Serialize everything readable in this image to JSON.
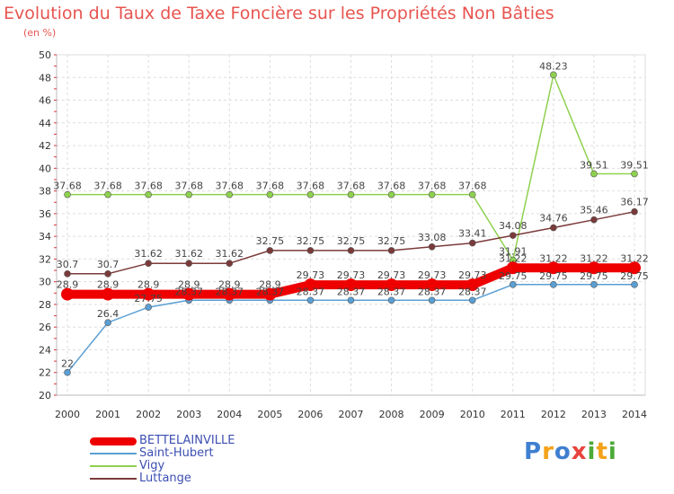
{
  "title": "Evolution du Taux de Taxe Foncière sur les Propriétés Non Bâties",
  "subtitle": "(en %)",
  "logo": {
    "letters": [
      "P",
      "r",
      "o",
      "x",
      "i",
      "t",
      "i"
    ],
    "colors": [
      "#3f7fd1",
      "#f4a21b",
      "#3f7fd1",
      "#e8433c",
      "#4caa38",
      "#f4a21b",
      "#4caa38"
    ]
  },
  "chart_data": {
    "type": "line",
    "title": "Evolution du Taux de Taxe Foncière sur les Propriétés Non Bâties",
    "ylabel": "(en %)",
    "x": [
      "2000",
      "2001",
      "2002",
      "2003",
      "2004",
      "2005",
      "2006",
      "2007",
      "2008",
      "2009",
      "2010",
      "2011",
      "2012",
      "2013",
      "2014"
    ],
    "ylim": [
      20,
      50
    ],
    "yticks": [
      "20",
      "22",
      "24",
      "26",
      "28",
      "30",
      "32",
      "34",
      "36",
      "38",
      "40",
      "42",
      "44",
      "46",
      "48",
      "50"
    ],
    "grid": true,
    "legend_position": "bottom-left",
    "series": [
      {
        "name": "BETTELAINVILLE",
        "color": "#ee0000",
        "values": [
          28.9,
          28.9,
          28.9,
          28.9,
          28.9,
          28.9,
          29.73,
          29.73,
          29.73,
          29.73,
          29.73,
          31.22,
          31.22,
          31.22,
          31.22
        ],
        "labels": [
          "28.9",
          "28.9",
          "28.9",
          "28.9",
          "28.9",
          "28.9",
          "29.73",
          "29.73",
          "29.73",
          "29.73",
          "29.73",
          "31.22",
          "31.22",
          "31.22",
          "31.22"
        ]
      },
      {
        "name": "Saint-Hubert",
        "color": "#5a9fd4",
        "values": [
          22,
          26.4,
          27.75,
          28.37,
          28.37,
          28.37,
          28.37,
          28.37,
          28.37,
          28.37,
          28.37,
          29.75,
          29.75,
          29.75,
          29.75
        ],
        "labels": [
          "22",
          "26.4",
          "27.75",
          "28.37",
          "28.37",
          "28.37",
          "28.37",
          "28.37",
          "28.37",
          "28.37",
          "28.37",
          "29.75",
          "29.75",
          "29.75",
          "29.75"
        ]
      },
      {
        "name": "Vigy",
        "color": "#8fd14f",
        "values": [
          37.68,
          37.68,
          37.68,
          37.68,
          37.68,
          37.68,
          37.68,
          37.68,
          37.68,
          37.68,
          37.68,
          31.91,
          48.23,
          39.51,
          39.51
        ],
        "labels": [
          "37.68",
          "37.68",
          "37.68",
          "37.68",
          "37.68",
          "37.68",
          "37.68",
          "37.68",
          "37.68",
          "37.68",
          "37.68",
          "31.91",
          "48.23",
          "39.51",
          "39.51"
        ]
      },
      {
        "name": "Luttange",
        "color": "#7b3a3a",
        "values": [
          30.7,
          30.7,
          31.62,
          31.62,
          31.62,
          32.75,
          32.75,
          32.75,
          32.75,
          33.08,
          33.41,
          34.08,
          34.76,
          35.46,
          36.17
        ],
        "labels": [
          "30.7",
          "30.7",
          "31.62",
          "31.62",
          "31.62",
          "32.75",
          "32.75",
          "32.75",
          "32.75",
          "33.08",
          "33.41",
          "34.08",
          "34.76",
          "35.46",
          "36.17"
        ]
      }
    ]
  }
}
